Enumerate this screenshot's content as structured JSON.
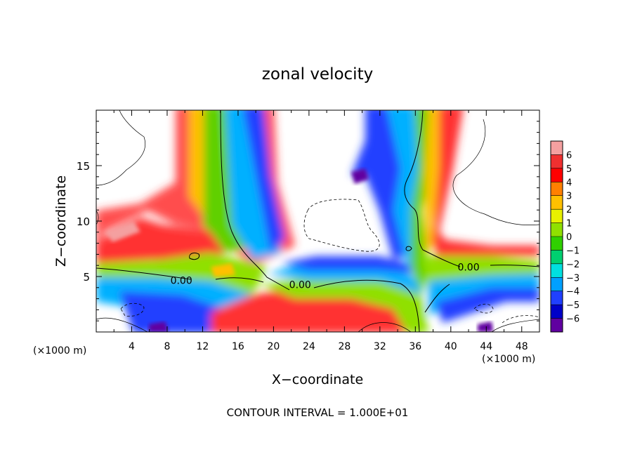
{
  "chart_data": {
    "type": "heatmap",
    "title": "zonal velocity",
    "xlabel": "X−coordinate",
    "ylabel": "Z−coordinate",
    "x_unit": "(×1000 m)",
    "y_unit": "(×1000 m)",
    "xlim": [
      0,
      50
    ],
    "ylim": [
      0,
      20
    ],
    "xticks": [
      4,
      8,
      12,
      16,
      20,
      24,
      28,
      32,
      36,
      40,
      44,
      48
    ],
    "yticks": [
      5,
      10,
      15
    ],
    "colorbar": {
      "ticks": [
        6,
        5,
        4,
        3,
        2,
        1,
        0,
        -1,
        -2,
        -3,
        -4,
        -5,
        -6
      ],
      "tick_labels": [
        "6",
        "5",
        "4",
        "3",
        "2",
        "1",
        "0",
        "−1",
        "−2",
        "−3",
        "−4",
        "−5",
        "−6"
      ],
      "colors": [
        "#f4a0a0",
        "#f03030",
        "#ff0000",
        "#ff8000",
        "#ffc000",
        "#e8f000",
        "#90e000",
        "#30d000",
        "#00d070",
        "#00e0e0",
        "#00a0ff",
        "#2040ff",
        "#0000c8",
        "#6000a0"
      ]
    },
    "contour_labels": [
      {
        "text": "0.00",
        "x": 9.6,
        "z": 4.6
      },
      {
        "text": "0.00",
        "x": 23.0,
        "z": 4.2
      },
      {
        "text": "0.00",
        "x": 42.0,
        "z": 5.8
      }
    ],
    "footnote": "CONTOUR INTERVAL = 1.000E+01",
    "grid": false
  }
}
